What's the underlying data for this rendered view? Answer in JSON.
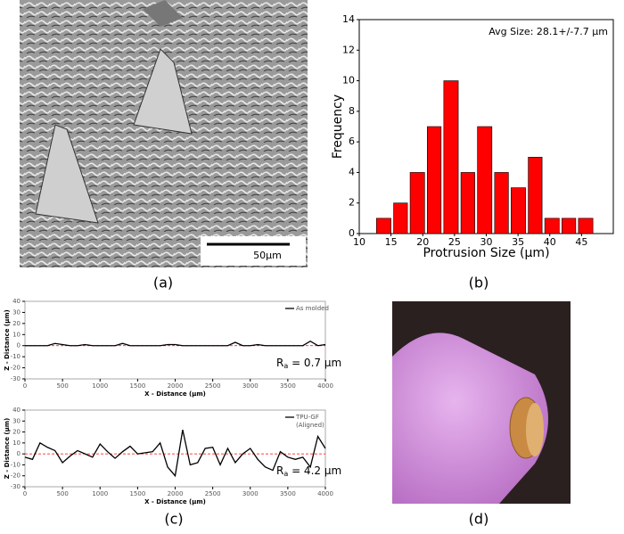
{
  "panel_labels": [
    "(a)",
    "(b)",
    "(c)",
    "(d)"
  ],
  "scale_bar_label": "50µm",
  "chart_data": [
    {
      "type": "histogram",
      "annotation": "Avg Size: 28.1+/-7.7 µm",
      "xlabel": "Protrusion Size (µm)",
      "ylabel": "Frequency",
      "bins": [
        12.5,
        15.2,
        17.8,
        20.5,
        23.1,
        25.8,
        28.4,
        31.1,
        33.7,
        36.4,
        39.0,
        41.7,
        44.3,
        47.0
      ],
      "counts": [
        1,
        2,
        4,
        7,
        10,
        4,
        7,
        4,
        3,
        5,
        1,
        1,
        1
      ],
      "color": "#ff0000",
      "xlim": [
        10,
        50
      ],
      "xticks": [
        10,
        15,
        20,
        25,
        30,
        35,
        40,
        45
      ],
      "ylim": [
        0,
        14
      ],
      "yticks": [
        0,
        2,
        4,
        6,
        8,
        10,
        12,
        14
      ]
    },
    {
      "type": "line",
      "xlabel": "X - Distance (µm)",
      "ylabel": "Z - Distance (µm)",
      "ra_symbol": "R",
      "ra_subscript": "a",
      "ra_value": " = 0.7 µm",
      "x": [
        0,
        100,
        200,
        300,
        400,
        500,
        600,
        700,
        800,
        900,
        1000,
        1100,
        1200,
        1300,
        1400,
        1500,
        1600,
        1700,
        1800,
        1900,
        2000,
        2100,
        2200,
        2300,
        2400,
        2500,
        2600,
        2700,
        2800,
        2900,
        3000,
        3100,
        3200,
        3300,
        3400,
        3500,
        3600,
        3700,
        3800,
        3900,
        4000
      ],
      "series": [
        {
          "name": "As molded",
          "color": "#000000",
          "values": [
            0,
            0,
            0,
            0,
            2,
            1,
            0,
            0,
            1,
            0,
            0,
            0,
            0,
            2,
            0,
            0,
            0,
            0,
            0,
            1,
            1,
            0,
            0,
            0,
            0,
            0,
            0,
            0,
            3,
            0,
            0,
            1,
            0,
            0,
            0,
            0,
            0,
            0,
            4,
            0,
            1
          ]
        }
      ],
      "reference_line": {
        "value": 0,
        "color": "#ff0000"
      },
      "xlim": [
        0,
        4000
      ],
      "xticks": [
        0,
        500,
        1000,
        1500,
        2000,
        2500,
        3000,
        3500,
        4000
      ],
      "ylim": [
        -30,
        40
      ],
      "yticks": [
        -30,
        -20,
        -10,
        0,
        10,
        20,
        30,
        40
      ]
    },
    {
      "type": "line",
      "xlabel": "X - Distance (µm)",
      "ylabel": "Z - Distance (µm)",
      "ra_symbol": "R",
      "ra_subscript": "a",
      "ra_value": " = 4.2 µm",
      "x": [
        0,
        100,
        200,
        300,
        400,
        500,
        600,
        700,
        800,
        900,
        1000,
        1100,
        1200,
        1300,
        1400,
        1500,
        1600,
        1700,
        1800,
        1900,
        2000,
        2100,
        2200,
        2300,
        2400,
        2500,
        2600,
        2700,
        2800,
        2900,
        3000,
        3100,
        3200,
        3300,
        3400,
        3500,
        3600,
        3700,
        3800,
        3900,
        4000
      ],
      "series": [
        {
          "name": "TPU-GF",
          "legend_note": "(Aligned)",
          "color": "#000000",
          "values": [
            -3,
            -5,
            10,
            6,
            3,
            -8,
            -2,
            3,
            0,
            -3,
            9,
            2,
            -4,
            2,
            7,
            0,
            1,
            2,
            10,
            -12,
            -20,
            22,
            -10,
            -8,
            5,
            6,
            -10,
            5,
            -8,
            0,
            5,
            -5,
            -12,
            -15,
            2,
            -3,
            -5,
            -3,
            -12,
            16,
            5
          ]
        }
      ],
      "reference_line": {
        "value": 0,
        "color": "#ff0000"
      },
      "xlim": [
        0,
        4000
      ],
      "xticks": [
        0,
        500,
        1000,
        1500,
        2000,
        2500,
        3000,
        3500,
        4000
      ],
      "ylim": [
        -30,
        40
      ],
      "yticks": [
        -30,
        -20,
        -10,
        0,
        10,
        20,
        30,
        40
      ]
    }
  ]
}
